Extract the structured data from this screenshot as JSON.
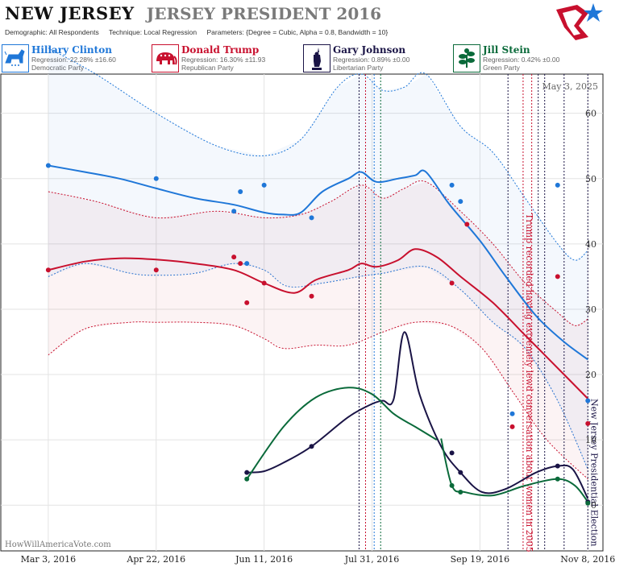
{
  "header": {
    "state": "NEW JERSEY",
    "race": "JERSEY PRESIDENT 2016",
    "demographic_label": "Demographic:",
    "demographic_value": "All Respondents",
    "technique_label": "Technique:",
    "technique_value": "Local Regression",
    "parameters_label": "Parameters:",
    "parameters_value": "{Degree = Cubic, Alpha = 0.8, Bandwidth = 10}"
  },
  "legend": [
    {
      "name": "Hillary Clinton",
      "regression": "Regression: 22.28% ±16.60",
      "party": "Democratic Party",
      "color": "#1f77d8",
      "icon": "donkey-icon"
    },
    {
      "name": "Donald Trump",
      "regression": "Regression: 16.30% ±11.93",
      "party": "Republican Party",
      "color": "#c8102e",
      "icon": "elephant-icon"
    },
    {
      "name": "Gary Johnson",
      "regression": "Regression: 0.89% ±0.00",
      "party": "Libertarian Party",
      "color": "#1a1446",
      "icon": "statue-of-liberty-icon"
    },
    {
      "name": "Jill Stein",
      "regression": "Regression: 0.42% ±0.00",
      "party": "Green Party",
      "color": "#0a6a3a",
      "icon": "plant-icon"
    }
  ],
  "date_stamp": "May 3, 2025",
  "watermark": "HowWillAmericaVote.com",
  "chart_data": {
    "type": "line",
    "x_type": "date",
    "xlim": [
      "2016-02-10",
      "2016-11-15"
    ],
    "ylim": [
      -7,
      66
    ],
    "x_ticks": [
      {
        "date": "2016-03-03",
        "label": "Mar 3, 2016"
      },
      {
        "date": "2016-04-22",
        "label": "Apr 22, 2016"
      },
      {
        "date": "2016-06-11",
        "label": "Jun 11, 2016"
      },
      {
        "date": "2016-07-31",
        "label": "Jul 31, 2016"
      },
      {
        "date": "2016-09-19",
        "label": "Sep 19, 2016"
      },
      {
        "date": "2016-11-08",
        "label": "Nov 8, 2016"
      }
    ],
    "y_ticks": [
      0,
      10,
      20,
      30,
      40,
      50,
      60
    ],
    "grid": true,
    "series": [
      {
        "name": "Hillary Clinton",
        "color": "#1f77d8",
        "line": [
          [
            "2016-03-03",
            52
          ],
          [
            "2016-03-20",
            51
          ],
          [
            "2016-04-05",
            50
          ],
          [
            "2016-04-22",
            48.5
          ],
          [
            "2016-05-10",
            47
          ],
          [
            "2016-05-28",
            46
          ],
          [
            "2016-06-11",
            44.8
          ],
          [
            "2016-06-20",
            44.5
          ],
          [
            "2016-06-28",
            44.8
          ],
          [
            "2016-07-08",
            48
          ],
          [
            "2016-07-20",
            50
          ],
          [
            "2016-07-26",
            51
          ],
          [
            "2016-08-02",
            49.5
          ],
          [
            "2016-08-12",
            50
          ],
          [
            "2016-08-20",
            50.5
          ],
          [
            "2016-08-25",
            51
          ],
          [
            "2016-09-05",
            46
          ],
          [
            "2016-09-19",
            40.5
          ],
          [
            "2016-10-01",
            35
          ],
          [
            "2016-10-15",
            29
          ],
          [
            "2016-10-28",
            25
          ],
          [
            "2016-11-08",
            22.3
          ]
        ],
        "upper": [
          [
            "2016-03-03",
            70
          ],
          [
            "2016-03-25",
            66
          ],
          [
            "2016-04-22",
            60
          ],
          [
            "2016-05-20",
            55
          ],
          [
            "2016-06-11",
            53.5
          ],
          [
            "2016-06-28",
            56
          ],
          [
            "2016-07-15",
            64
          ],
          [
            "2016-07-26",
            66
          ],
          [
            "2016-08-05",
            63.5
          ],
          [
            "2016-08-15",
            64
          ],
          [
            "2016-08-25",
            66
          ],
          [
            "2016-09-10",
            58
          ],
          [
            "2016-09-25",
            54
          ],
          [
            "2016-10-10",
            47
          ],
          [
            "2016-10-25",
            40
          ],
          [
            "2016-11-02",
            37.5
          ],
          [
            "2016-11-08",
            39
          ]
        ],
        "lower": [
          [
            "2016-03-03",
            35
          ],
          [
            "2016-03-20",
            37
          ],
          [
            "2016-04-10",
            35.5
          ],
          [
            "2016-04-22",
            35.2
          ],
          [
            "2016-05-10",
            35.5
          ],
          [
            "2016-05-28",
            37
          ],
          [
            "2016-06-11",
            36
          ],
          [
            "2016-06-22",
            33.5
          ],
          [
            "2016-07-08",
            34
          ],
          [
            "2016-07-25",
            35
          ],
          [
            "2016-08-05",
            35.5
          ],
          [
            "2016-08-25",
            36.5
          ],
          [
            "2016-09-10",
            33
          ],
          [
            "2016-09-25",
            28
          ],
          [
            "2016-10-10",
            24
          ],
          [
            "2016-10-25",
            16
          ],
          [
            "2016-11-08",
            5.5
          ]
        ],
        "points": [
          [
            "2016-03-03",
            52
          ],
          [
            "2016-04-22",
            50
          ],
          [
            "2016-05-28",
            45
          ],
          [
            "2016-05-31",
            48
          ],
          [
            "2016-06-03",
            37
          ],
          [
            "2016-06-11",
            49
          ],
          [
            "2016-07-03",
            44
          ],
          [
            "2016-09-06",
            49
          ],
          [
            "2016-09-10",
            46.5
          ],
          [
            "2016-10-04",
            14
          ],
          [
            "2016-10-25",
            49
          ],
          [
            "2016-11-08",
            16
          ]
        ]
      },
      {
        "name": "Donald Trump",
        "color": "#c8102e",
        "line": [
          [
            "2016-03-03",
            36
          ],
          [
            "2016-03-20",
            37.3
          ],
          [
            "2016-04-05",
            37.8
          ],
          [
            "2016-04-22",
            37.6
          ],
          [
            "2016-05-10",
            37
          ],
          [
            "2016-05-28",
            36
          ],
          [
            "2016-06-11",
            34
          ],
          [
            "2016-06-25",
            32.5
          ],
          [
            "2016-07-05",
            34.5
          ],
          [
            "2016-07-20",
            36
          ],
          [
            "2016-07-26",
            37
          ],
          [
            "2016-08-02",
            36.5
          ],
          [
            "2016-08-12",
            37.5
          ],
          [
            "2016-08-20",
            39.2
          ],
          [
            "2016-08-30",
            38
          ],
          [
            "2016-09-10",
            35
          ],
          [
            "2016-09-25",
            31
          ],
          [
            "2016-10-10",
            26
          ],
          [
            "2016-10-22",
            22
          ],
          [
            "2016-11-08",
            16.3
          ]
        ],
        "upper": [
          [
            "2016-03-03",
            48
          ],
          [
            "2016-03-25",
            46.5
          ],
          [
            "2016-04-22",
            44
          ],
          [
            "2016-05-20",
            45
          ],
          [
            "2016-06-11",
            44
          ],
          [
            "2016-06-28",
            44.5
          ],
          [
            "2016-07-12",
            46.5
          ],
          [
            "2016-07-26",
            49
          ],
          [
            "2016-08-05",
            47
          ],
          [
            "2016-08-15",
            48.5
          ],
          [
            "2016-08-25",
            49.5
          ],
          [
            "2016-09-10",
            45
          ],
          [
            "2016-09-25",
            40
          ],
          [
            "2016-10-10",
            34
          ],
          [
            "2016-10-25",
            29.5
          ],
          [
            "2016-11-02",
            27.5
          ],
          [
            "2016-11-08",
            28.5
          ]
        ],
        "lower": [
          [
            "2016-03-03",
            23
          ],
          [
            "2016-03-20",
            27
          ],
          [
            "2016-04-10",
            28
          ],
          [
            "2016-04-22",
            28
          ],
          [
            "2016-05-10",
            28
          ],
          [
            "2016-05-28",
            27.5
          ],
          [
            "2016-06-11",
            25.5
          ],
          [
            "2016-06-20",
            24
          ],
          [
            "2016-07-05",
            24.5
          ],
          [
            "2016-07-20",
            24.5
          ],
          [
            "2016-08-05",
            26.5
          ],
          [
            "2016-08-20",
            28
          ],
          [
            "2016-09-05",
            27.5
          ],
          [
            "2016-09-20",
            24
          ],
          [
            "2016-10-05",
            17
          ],
          [
            "2016-10-20",
            10
          ],
          [
            "2016-11-08",
            4
          ]
        ],
        "points": [
          [
            "2016-03-03",
            36
          ],
          [
            "2016-04-22",
            36
          ],
          [
            "2016-05-28",
            38
          ],
          [
            "2016-05-31",
            37
          ],
          [
            "2016-06-03",
            31
          ],
          [
            "2016-06-11",
            34
          ],
          [
            "2016-07-03",
            32
          ],
          [
            "2016-09-06",
            34
          ],
          [
            "2016-09-13",
            43
          ],
          [
            "2016-10-04",
            12
          ],
          [
            "2016-10-25",
            35
          ],
          [
            "2016-11-08",
            12.5
          ]
        ]
      },
      {
        "name": "Gary Johnson",
        "color": "#1a1446",
        "line": [
          [
            "2016-06-03",
            5
          ],
          [
            "2016-06-11",
            5.2
          ],
          [
            "2016-06-20",
            6.5
          ],
          [
            "2016-07-03",
            9
          ],
          [
            "2016-07-20",
            13.5
          ],
          [
            "2016-07-31",
            15.5
          ],
          [
            "2016-08-05",
            16
          ],
          [
            "2016-08-10",
            16.2
          ],
          [
            "2016-08-15",
            26.5
          ],
          [
            "2016-08-22",
            17
          ],
          [
            "2016-09-01",
            9
          ],
          [
            "2016-09-10",
            5
          ],
          [
            "2016-09-20",
            2
          ],
          [
            "2016-10-01",
            2.5
          ],
          [
            "2016-10-15",
            5
          ],
          [
            "2016-10-25",
            6
          ],
          [
            "2016-11-01",
            5.5
          ],
          [
            "2016-11-08",
            1
          ]
        ],
        "points": [
          [
            "2016-06-03",
            5
          ],
          [
            "2016-07-03",
            9
          ],
          [
            "2016-09-06",
            8
          ],
          [
            "2016-09-10",
            5
          ],
          [
            "2016-10-25",
            6
          ],
          [
            "2016-11-08",
            0.5
          ]
        ]
      },
      {
        "name": "Jill Stein",
        "color": "#0a6a3a",
        "line": [
          [
            "2016-06-03",
            4
          ],
          [
            "2016-06-20",
            12
          ],
          [
            "2016-07-05",
            16.5
          ],
          [
            "2016-07-20",
            18
          ],
          [
            "2016-07-31",
            17
          ],
          [
            "2016-08-10",
            14
          ],
          [
            "2016-08-20",
            12
          ],
          [
            "2016-08-30",
            10
          ]
        ],
        "line2": [
          [
            "2016-09-01",
            10.2
          ],
          [
            "2016-09-06",
            3
          ],
          [
            "2016-09-12",
            2
          ],
          [
            "2016-09-25",
            1.5
          ],
          [
            "2016-10-10",
            3
          ],
          [
            "2016-10-25",
            4
          ],
          [
            "2016-11-02",
            3
          ],
          [
            "2016-11-08",
            0.5
          ]
        ],
        "points": [
          [
            "2016-06-03",
            4
          ],
          [
            "2016-09-06",
            3
          ],
          [
            "2016-09-10",
            2
          ],
          [
            "2016-10-25",
            4
          ],
          [
            "2016-11-08",
            0.3
          ]
        ]
      }
    ],
    "events": [
      {
        "date": "2016-07-25",
        "color": "#1a1446",
        "style": "dotted"
      },
      {
        "date": "2016-07-28",
        "color": "#c8102e",
        "style": "dotted"
      },
      {
        "date": "2016-08-01",
        "color": "#1f77d8",
        "style": "dotted"
      },
      {
        "date": "2016-08-04",
        "color": "#0a6a3a",
        "style": "dotted"
      },
      {
        "date": "2016-10-02",
        "color": "#1a1446",
        "style": "dotted"
      },
      {
        "date": "2016-10-09",
        "color": "#c8102e",
        "style": "dotted",
        "label": "Trump recorded having extremely lewd conversation about women in 2005"
      },
      {
        "date": "2016-10-13",
        "color": "#c8102e",
        "style": "dotted"
      },
      {
        "date": "2016-10-16",
        "color": "#1a1446",
        "style": "dotted"
      },
      {
        "date": "2016-10-19",
        "color": "#1a1446",
        "style": "dotted"
      },
      {
        "date": "2016-10-28",
        "color": "#1a1446",
        "style": "dotted"
      },
      {
        "date": "2016-11-08",
        "color": "#1a1446",
        "style": "dotted",
        "label": "New Jersey Presidential Election"
      }
    ]
  }
}
